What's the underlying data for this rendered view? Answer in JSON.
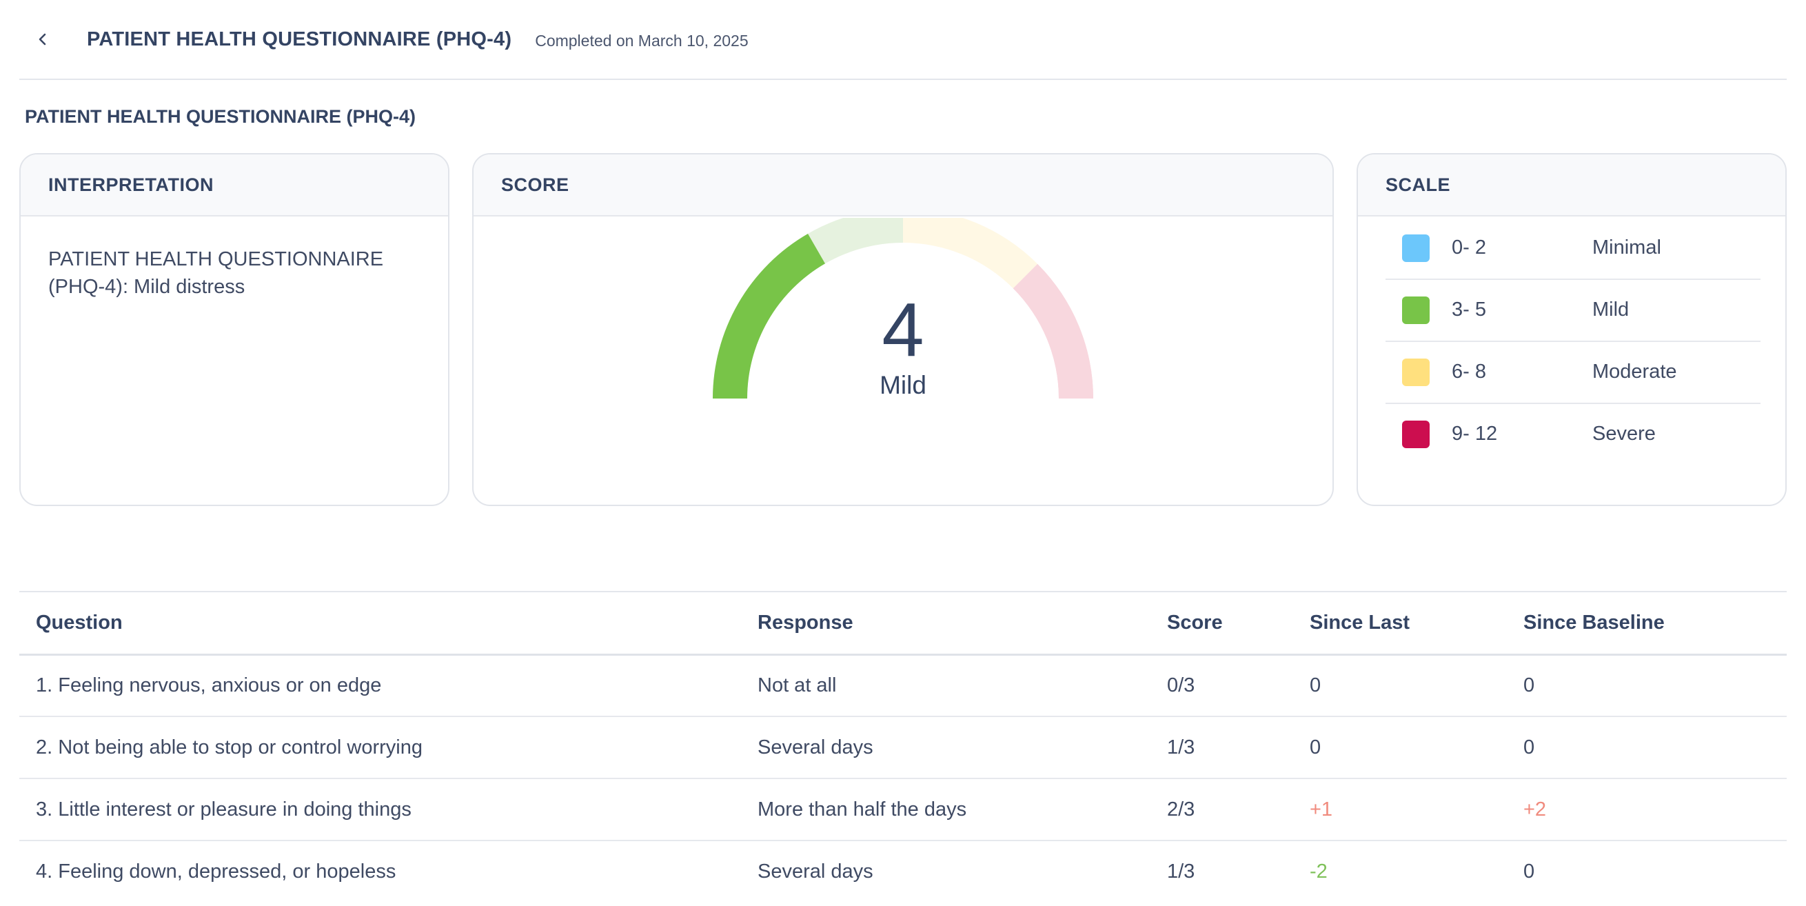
{
  "header": {
    "title": "PATIENT HEALTH QUESTIONNAIRE (PHQ-4)",
    "completed": "Completed on March 10, 2025"
  },
  "section_title": "PATIENT HEALTH QUESTIONNAIRE (PHQ-4)",
  "interpretation": {
    "heading": "INTERPRETATION",
    "text": "PATIENT HEALTH QUESTIONNAIRE (PHQ-4): Mild distress"
  },
  "score": {
    "heading": "SCORE",
    "value": "4",
    "label": "Mild",
    "gauge": {
      "min": 0,
      "max": 12,
      "current": 4,
      "bands": [
        {
          "from": 0,
          "to": 2,
          "filled": "#78c448",
          "muted": "#e6f2df"
        },
        {
          "from": 3,
          "to": 5,
          "filled": "#78c448",
          "muted": "#e6f2df"
        },
        {
          "from": 6,
          "to": 8,
          "filled": "#ffe27a",
          "muted": "#fff8e4"
        },
        {
          "from": 9,
          "to": 12,
          "filled": "#cc0e4f",
          "muted": "#f8d7de"
        }
      ]
    }
  },
  "scale": {
    "heading": "SCALE",
    "items": [
      {
        "range": "0- 2",
        "label": "Minimal",
        "color": "#6cc7fb"
      },
      {
        "range": "3- 5",
        "label": "Mild",
        "color": "#78c448"
      },
      {
        "range": "6- 8",
        "label": "Moderate",
        "color": "#ffe07e"
      },
      {
        "range": "9- 12",
        "label": "Severe",
        "color": "#cc0e4f"
      }
    ]
  },
  "table": {
    "headers": [
      "Question",
      "Response",
      "Score",
      "Since Last",
      "Since Baseline"
    ],
    "rows": [
      {
        "question": "1. Feeling nervous, anxious or on edge",
        "response": "Not at all",
        "score": "0/3",
        "since_last": "0",
        "since_baseline": "0"
      },
      {
        "question": "2. Not being able to stop or control worrying",
        "response": "Several days",
        "score": "1/3",
        "since_last": "0",
        "since_baseline": "0"
      },
      {
        "question": "3. Little interest or pleasure in doing things",
        "response": "More than half the days",
        "score": "2/3",
        "since_last": "+1",
        "since_baseline": "+2"
      },
      {
        "question": "4. Feeling down, depressed, or hopeless",
        "response": "Several days",
        "score": "1/3",
        "since_last": "-2",
        "since_baseline": "0"
      }
    ]
  }
}
